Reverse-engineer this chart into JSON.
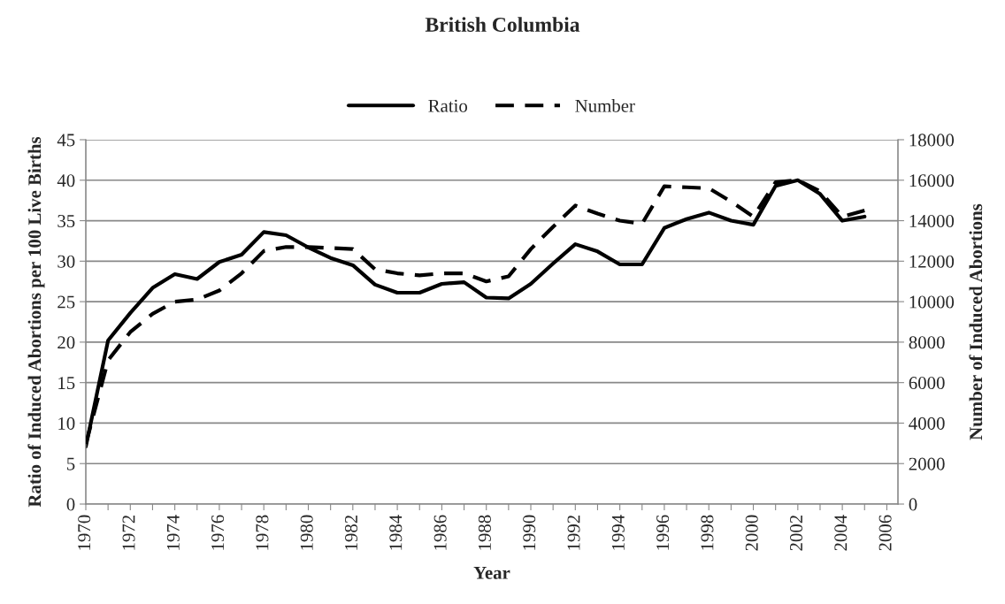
{
  "chart_data": {
    "type": "line",
    "title": "British Columbia",
    "xlabel": "Year",
    "ylabel": "Ratio of Induced Abortions per 100 Live Births",
    "y2label": "Number of Induced Abortions",
    "x": [
      1970,
      1971,
      1972,
      1973,
      1974,
      1975,
      1976,
      1977,
      1978,
      1979,
      1980,
      1981,
      1982,
      1983,
      1984,
      1985,
      1986,
      1987,
      1988,
      1989,
      1990,
      1991,
      1992,
      1993,
      1994,
      1995,
      1996,
      1997,
      1998,
      1999,
      2000,
      2001,
      2002,
      2003,
      2004,
      2005
    ],
    "series": [
      {
        "name": "Ratio",
        "color": "#000000",
        "line_style": "solid",
        "values": [
          7.1,
          20.2,
          23.6,
          26.7,
          28.4,
          27.8,
          29.9,
          30.8,
          33.6,
          33.2,
          31.7,
          30.4,
          29.5,
          27.1,
          26.1,
          26.1,
          27.2,
          27.4,
          25.5,
          25.4,
          27.2,
          29.7,
          32.1,
          31.2,
          29.6,
          29.6,
          34.1,
          35.2,
          36.0,
          35.0,
          34.5,
          39.3,
          40.0,
          38.3,
          35.0,
          35.5
        ]
      },
      {
        "name": "Number",
        "color": "#000000",
        "line_style": "dashed",
        "axis": "y2",
        "values": [
          2970,
          7100,
          8500,
          9400,
          10000,
          10100,
          10550,
          11400,
          12500,
          12700,
          12700,
          12650,
          12600,
          11600,
          11400,
          11300,
          11400,
          11400,
          11000,
          11250,
          12600,
          13700,
          14750,
          14350,
          14000,
          13850,
          15700,
          15650,
          15600,
          14950,
          14200,
          15900,
          16000,
          15450,
          14200,
          14500
        ]
      }
    ],
    "xlim": [
      1970,
      2006.5
    ],
    "xticks": [
      1970,
      {
        "value": 1971,
        "label": null
      },
      1972,
      {
        "value": 1973,
        "label": null
      },
      1974,
      {
        "value": 1975,
        "label": null
      },
      1976,
      {
        "value": 1977,
        "label": null
      },
      1978,
      {
        "value": 1979,
        "label": null
      },
      1980,
      {
        "value": 1981,
        "label": null
      },
      1982,
      {
        "value": 1983,
        "label": null
      },
      1984,
      {
        "value": 1985,
        "label": null
      },
      1986,
      {
        "value": 1987,
        "label": null
      },
      1988,
      {
        "value": 1989,
        "label": null
      },
      1990,
      {
        "value": 1991,
        "label": null
      },
      1992,
      {
        "value": 1993,
        "label": null
      },
      1994,
      {
        "value": 1995,
        "label": null
      },
      1996,
      {
        "value": 1997,
        "label": null
      },
      1998,
      {
        "value": 1999,
        "label": null
      },
      2000,
      {
        "value": 2001,
        "label": null
      },
      2002,
      {
        "value": 2003,
        "label": null
      },
      2004,
      {
        "value": 2005,
        "label": null
      },
      2006
    ],
    "ylim": [
      0,
      45
    ],
    "yticks": [
      0,
      5,
      10,
      15,
      20,
      25,
      30,
      35,
      40,
      45
    ],
    "y2lim": [
      0,
      18000
    ],
    "y2ticks": [
      0,
      2000,
      4000,
      6000,
      8000,
      10000,
      12000,
      14000,
      16000,
      18000
    ],
    "grid": "y",
    "legend": "top"
  }
}
